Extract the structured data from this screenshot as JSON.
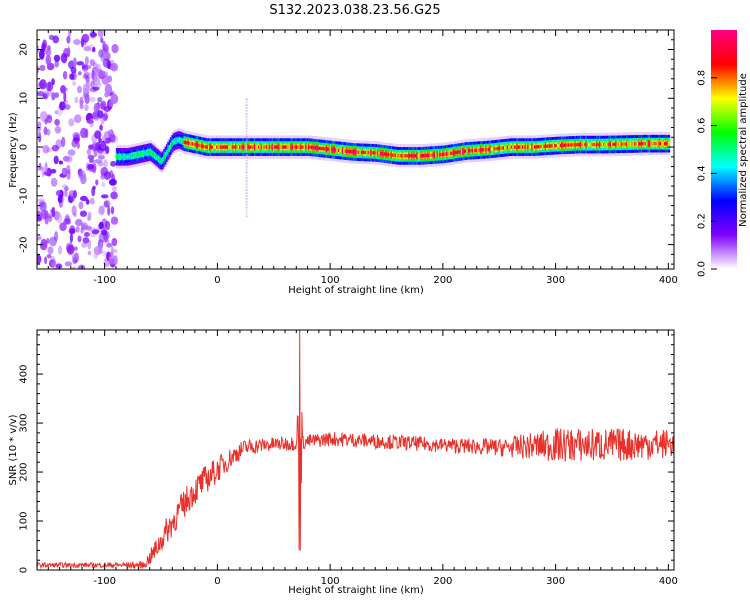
{
  "figure_title": "S132.2023.038.23.56.G25",
  "chart_data": [
    {
      "type": "heatmap",
      "xlabel": "Height of straight line (km)",
      "ylabel": "Frequency (Hz)",
      "xlim": [
        -160,
        405
      ],
      "ylim": [
        -25,
        24
      ],
      "xticks": [
        -100,
        0,
        100,
        200,
        300,
        400
      ],
      "yticks": [
        -20,
        -10,
        0,
        10,
        20
      ],
      "colorbar": {
        "label": "Normalized spectral amplitude",
        "range": [
          0,
          1
        ],
        "ticks": [
          "0.0",
          "0.2",
          "0.4",
          "0.6",
          "0.8"
        ],
        "tick_values": [
          0.0,
          0.2,
          0.4,
          0.6,
          0.8
        ],
        "colors": [
          "#ffffff",
          "#8000ff",
          "#0000ff",
          "#00ffff",
          "#00ff00",
          "#ffff00",
          "#ff0000",
          "#ff0080"
        ]
      },
      "noise_region_x": [
        -160,
        -90
      ],
      "ridge": {
        "x": [
          -90,
          -80,
          -70,
          -60,
          -55,
          -50,
          -45,
          -40,
          -35,
          -30,
          -20,
          -10,
          0,
          20,
          40,
          60,
          80,
          100,
          120,
          140,
          160,
          180,
          200,
          220,
          240,
          260,
          280,
          300,
          320,
          340,
          360,
          380,
          400
        ],
        "frequency": [
          -2,
          -2,
          -1.5,
          -1,
          -2,
          -3,
          -1,
          1,
          1.5,
          1,
          0.5,
          0,
          0,
          0,
          0,
          0,
          0,
          -0.5,
          -1,
          -1.2,
          -1.8,
          -1.8,
          -1.5,
          -0.8,
          -0.5,
          0,
          0,
          0.3,
          0.5,
          0.5,
          0.6,
          0.7,
          0.7
        ]
      },
      "spikes": [
        {
          "x": 25,
          "frequency_range": [
            -14,
            10
          ]
        }
      ]
    },
    {
      "type": "line",
      "xlabel": "Height of straight line (km)",
      "ylabel": "SNR (10 * v/v)",
      "xlim": [
        -160,
        405
      ],
      "ylim": [
        0,
        490
      ],
      "xticks": [
        -100,
        0,
        100,
        200,
        300,
        400
      ],
      "yticks": [
        0,
        100,
        200,
        300,
        400
      ],
      "series": [
        {
          "color": "#e8312b",
          "envelope": {
            "x": [
              -160,
              -100,
              -65,
              -55,
              -45,
              -35,
              -25,
              -15,
              -5,
              5,
              15,
              25,
              40,
              60,
              73,
              80,
              100,
              150,
              200,
              250,
              300,
              350,
              400,
              405
            ],
            "y": [
              10,
              10,
              10,
              40,
              80,
              115,
              150,
              175,
              195,
              215,
              235,
              250,
              255,
              258,
              260,
              262,
              268,
              262,
              255,
              250,
              255,
              255,
              258,
              258
            ],
            "noise": [
              5,
              5,
              7,
              22,
              28,
              30,
              30,
              30,
              28,
              25,
              20,
              18,
              15,
              15,
              15,
              15,
              15,
              15,
              15,
              18,
              35,
              35,
              30,
              30
            ]
          },
          "spike": {
            "x": 73,
            "min": 40,
            "max": 490
          }
        }
      ]
    }
  ]
}
